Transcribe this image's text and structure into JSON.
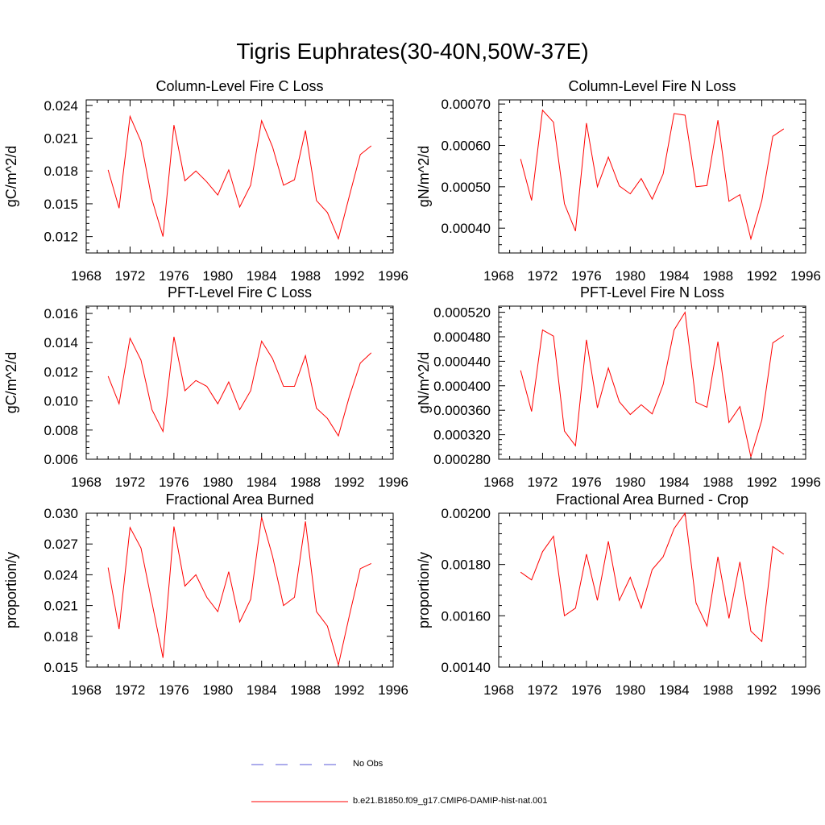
{
  "main_title": "Tigris Euphrates(30-40N,50W-37E)",
  "colors": {
    "series": "#ff0000",
    "obs": "#5a5ad8",
    "axis": "#000000"
  },
  "legend": {
    "obs_label": "No Obs",
    "model_label": "b.e21.B1850.f09_g17.CMIP6-DAMIP-hist-nat.001"
  },
  "chart_data": [
    {
      "type": "line",
      "title": "Column-Level Fire C Loss",
      "ylabel": "gC/m^2/d",
      "xlim": [
        1968,
        1996
      ],
      "ylim": [
        0.0105,
        0.0245
      ],
      "xticks": [
        "1968",
        "1972",
        "1976",
        "1980",
        "1984",
        "1988",
        "1992",
        "1996"
      ],
      "yticks": [
        {
          "v": 0.012,
          "label": "0.012"
        },
        {
          "v": 0.015,
          "label": "0.015"
        },
        {
          "v": 0.018,
          "label": "0.018"
        },
        {
          "v": 0.021,
          "label": "0.021"
        },
        {
          "v": 0.024,
          "label": "0.024"
        }
      ],
      "x": [
        1970,
        1971,
        1972,
        1973,
        1974,
        1975,
        1976,
        1977,
        1978,
        1979,
        1980,
        1981,
        1982,
        1983,
        1984,
        1985,
        1986,
        1987,
        1988,
        1989,
        1990,
        1991,
        1992,
        1993,
        1994
      ],
      "series": [
        {
          "values": [
            0.0181,
            0.0146,
            0.023,
            0.0207,
            0.0154,
            0.012,
            0.0222,
            0.0171,
            0.018,
            0.017,
            0.0158,
            0.0181,
            0.0147,
            0.0167,
            0.0226,
            0.0202,
            0.0167,
            0.0172,
            0.0217,
            0.0153,
            0.0142,
            0.0118,
            0.0157,
            0.0195,
            0.0203
          ]
        }
      ]
    },
    {
      "type": "line",
      "title": "Column-Level Fire N Loss",
      "ylabel": "gN/m^2/d",
      "xlim": [
        1968,
        1996
      ],
      "ylim": [
        0.00034,
        0.00071
      ],
      "xticks": [
        "1968",
        "1972",
        "1976",
        "1980",
        "1984",
        "1988",
        "1992",
        "1996"
      ],
      "yticks": [
        {
          "v": 0.0004,
          "label": "0.00040"
        },
        {
          "v": 0.0005,
          "label": "0.00050"
        },
        {
          "v": 0.0006,
          "label": "0.00060"
        },
        {
          "v": 0.0007,
          "label": "0.00070"
        }
      ],
      "x": [
        1970,
        1971,
        1972,
        1973,
        1974,
        1975,
        1976,
        1977,
        1978,
        1979,
        1980,
        1981,
        1982,
        1983,
        1984,
        1985,
        1986,
        1987,
        1988,
        1989,
        1990,
        1991,
        1992,
        1993,
        1994
      ],
      "series": [
        {
          "values": [
            0.000567,
            0.000467,
            0.000685,
            0.000656,
            0.000459,
            0.000393,
            0.000654,
            0.0005,
            0.000572,
            0.000502,
            0.000483,
            0.00052,
            0.00047,
            0.000531,
            0.000677,
            0.000673,
            0.0005,
            0.000503,
            0.000661,
            0.000465,
            0.000481,
            0.000374,
            0.000467,
            0.000622,
            0.00064
          ]
        }
      ]
    },
    {
      "type": "line",
      "title": "PFT-Level Fire C Loss",
      "ylabel": "gC/m^2/d",
      "xlim": [
        1968,
        1996
      ],
      "ylim": [
        0.006,
        0.0165
      ],
      "xticks": [
        "1968",
        "1972",
        "1976",
        "1980",
        "1984",
        "1988",
        "1992",
        "1996"
      ],
      "yticks": [
        {
          "v": 0.006,
          "label": "0.006"
        },
        {
          "v": 0.008,
          "label": "0.008"
        },
        {
          "v": 0.01,
          "label": "0.010"
        },
        {
          "v": 0.012,
          "label": "0.012"
        },
        {
          "v": 0.014,
          "label": "0.014"
        },
        {
          "v": 0.016,
          "label": "0.016"
        }
      ],
      "x": [
        1970,
        1971,
        1972,
        1973,
        1974,
        1975,
        1976,
        1977,
        1978,
        1979,
        1980,
        1981,
        1982,
        1983,
        1984,
        1985,
        1986,
        1987,
        1988,
        1989,
        1990,
        1991,
        1992,
        1993,
        1994
      ],
      "series": [
        {
          "values": [
            0.0117,
            0.0098,
            0.0143,
            0.0128,
            0.0094,
            0.0079,
            0.0144,
            0.0107,
            0.0114,
            0.011,
            0.0098,
            0.0113,
            0.0094,
            0.0107,
            0.0141,
            0.0129,
            0.011,
            0.011,
            0.0131,
            0.0095,
            0.0088,
            0.0076,
            0.0103,
            0.0126,
            0.0133
          ]
        }
      ]
    },
    {
      "type": "line",
      "title": "PFT-Level Fire N Loss",
      "ylabel": "gN/m^2/d",
      "xlim": [
        1968,
        1996
      ],
      "ylim": [
        0.00028,
        0.00053
      ],
      "xticks": [
        "1968",
        "1972",
        "1976",
        "1980",
        "1984",
        "1988",
        "1992",
        "1996"
      ],
      "yticks": [
        {
          "v": 0.00028,
          "label": "0.000280"
        },
        {
          "v": 0.00032,
          "label": "0.000320"
        },
        {
          "v": 0.00036,
          "label": "0.000360"
        },
        {
          "v": 0.0004,
          "label": "0.000400"
        },
        {
          "v": 0.00044,
          "label": "0.000440"
        },
        {
          "v": 0.00048,
          "label": "0.000480"
        },
        {
          "v": 0.00052,
          "label": "0.000520"
        }
      ],
      "x": [
        1970,
        1971,
        1972,
        1973,
        1974,
        1975,
        1976,
        1977,
        1978,
        1979,
        1980,
        1981,
        1982,
        1983,
        1984,
        1985,
        1986,
        1987,
        1988,
        1989,
        1990,
        1991,
        1992,
        1993,
        1994
      ],
      "series": [
        {
          "values": [
            0.000425,
            0.000358,
            0.000491,
            0.000481,
            0.000326,
            0.000302,
            0.000475,
            0.000364,
            0.000429,
            0.000374,
            0.000353,
            0.000369,
            0.000354,
            0.000402,
            0.000491,
            0.00052,
            0.000373,
            0.000365,
            0.000472,
            0.00034,
            0.000366,
            0.000284,
            0.000344,
            0.00047,
            0.000482
          ]
        }
      ]
    },
    {
      "type": "line",
      "title": "Fractional Area Burned",
      "ylabel": "proportion/y",
      "xlim": [
        1968,
        1996
      ],
      "ylim": [
        0.015,
        0.03
      ],
      "xticks": [
        "1968",
        "1972",
        "1976",
        "1980",
        "1984",
        "1988",
        "1992",
        "1996"
      ],
      "yticks": [
        {
          "v": 0.015,
          "label": "0.015"
        },
        {
          "v": 0.018,
          "label": "0.018"
        },
        {
          "v": 0.021,
          "label": "0.021"
        },
        {
          "v": 0.024,
          "label": "0.024"
        },
        {
          "v": 0.027,
          "label": "0.027"
        },
        {
          "v": 0.03,
          "label": "0.030"
        }
      ],
      "x": [
        1970,
        1971,
        1972,
        1973,
        1974,
        1975,
        1976,
        1977,
        1978,
        1979,
        1980,
        1981,
        1982,
        1983,
        1984,
        1985,
        1986,
        1987,
        1988,
        1989,
        1990,
        1991,
        1992,
        1993,
        1994
      ],
      "series": [
        {
          "values": [
            0.0247,
            0.0187,
            0.0286,
            0.0266,
            0.0213,
            0.0159,
            0.0287,
            0.0229,
            0.024,
            0.0218,
            0.0204,
            0.0243,
            0.0194,
            0.0216,
            0.0296,
            0.0258,
            0.021,
            0.0218,
            0.0292,
            0.0204,
            0.019,
            0.0152,
            0.02,
            0.0246,
            0.0251
          ]
        }
      ]
    },
    {
      "type": "line",
      "title": "Fractional Area Burned - Crop",
      "ylabel": "proportion/y",
      "xlim": [
        1968,
        1996
      ],
      "ylim": [
        0.0014,
        0.002
      ],
      "xticks": [
        "1968",
        "1972",
        "1976",
        "1980",
        "1984",
        "1988",
        "1992",
        "1996"
      ],
      "yticks": [
        {
          "v": 0.0014,
          "label": "0.00140"
        },
        {
          "v": 0.0016,
          "label": "0.00160"
        },
        {
          "v": 0.0018,
          "label": "0.00180"
        },
        {
          "v": 0.002,
          "label": "0.00200"
        }
      ],
      "x": [
        1970,
        1971,
        1972,
        1973,
        1974,
        1975,
        1976,
        1977,
        1978,
        1979,
        1980,
        1981,
        1982,
        1983,
        1984,
        1985,
        1986,
        1987,
        1988,
        1989,
        1990,
        1991,
        1992,
        1993,
        1994
      ],
      "series": [
        {
          "values": [
            0.00177,
            0.00174,
            0.00185,
            0.00191,
            0.0016,
            0.00163,
            0.00184,
            0.00166,
            0.00189,
            0.00166,
            0.00175,
            0.00163,
            0.00178,
            0.00183,
            0.00194,
            0.002,
            0.00165,
            0.00156,
            0.00183,
            0.00159,
            0.00181,
            0.00154,
            0.0015,
            0.00187,
            0.00184
          ]
        }
      ]
    }
  ]
}
